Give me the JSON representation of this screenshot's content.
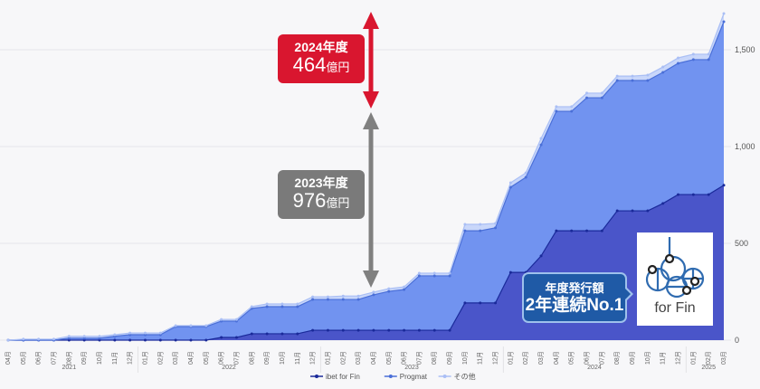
{
  "chart_data": {
    "type": "area",
    "stacked": true,
    "title": "",
    "xlabel": "",
    "ylabel": "",
    "ylim": [
      0,
      1700
    ],
    "y_ticks": [
      0,
      500,
      1000,
      1500
    ],
    "y_tick_labels": [
      "0",
      "500",
      "1,000",
      "1,500"
    ],
    "y_axis_position": "right",
    "grid": true,
    "legend_position": "bottom",
    "categories": [
      "04月",
      "05月",
      "06月",
      "07月",
      "08月",
      "09月",
      "10月",
      "11月",
      "12月",
      "01月",
      "02月",
      "03月",
      "04月",
      "05月",
      "06月",
      "07月",
      "08月",
      "09月",
      "10月",
      "11月",
      "12月",
      "01月",
      "02月",
      "03月",
      "04月",
      "05月",
      "06月",
      "07月",
      "08月",
      "09月",
      "10月",
      "11月",
      "12月",
      "01月",
      "02月",
      "03月",
      "04月",
      "05月",
      "06月",
      "07月",
      "08月",
      "09月",
      "10月",
      "11月",
      "12月",
      "01月",
      "02月",
      "03月"
    ],
    "year_labels": [
      {
        "label": "2021",
        "start_index": 0,
        "end_index": 8
      },
      {
        "label": "2022",
        "start_index": 9,
        "end_index": 20
      },
      {
        "label": "2023",
        "start_index": 21,
        "end_index": 32
      },
      {
        "label": "2024",
        "start_index": 33,
        "end_index": 44
      },
      {
        "label": "2025",
        "start_index": 45,
        "end_index": 47
      }
    ],
    "series": [
      {
        "name": "ibet for Fin",
        "color": "#4a55c9",
        "line_color": "#1a2a9a",
        "values": [
          0,
          0,
          0,
          0,
          0,
          0,
          0,
          0,
          0,
          0,
          0,
          0,
          0,
          0,
          14,
          14,
          33,
          33,
          33,
          33,
          51,
          51,
          51,
          51,
          51,
          51,
          51,
          51,
          51,
          51,
          192,
          192,
          192,
          350,
          350,
          435,
          565,
          565,
          565,
          565,
          668,
          668,
          668,
          706,
          752,
          752,
          752,
          800
        ]
      },
      {
        "name": "Progmat",
        "color": "#7193f0",
        "line_color": "#4a6fd8",
        "values": [
          0,
          0,
          0,
          0,
          10,
          10,
          10,
          20,
          28,
          28,
          28,
          70,
          70,
          70,
          84,
          84,
          131,
          140,
          140,
          140,
          159,
          159,
          159,
          159,
          183,
          201,
          210,
          281,
          281,
          281,
          373,
          373,
          388,
          440,
          491,
          574,
          617,
          617,
          687,
          687,
          673,
          673,
          673,
          677,
          678,
          697,
          697,
          845
        ]
      },
      {
        "name": "その他",
        "color": "#c9d7fa",
        "line_color": "#aabff5",
        "values": [
          0,
          5,
          5,
          5,
          10,
          10,
          10,
          8,
          9,
          9,
          9,
          5,
          5,
          5,
          9,
          9,
          9,
          14,
          14,
          14,
          14,
          14,
          18,
          18,
          14,
          14,
          14,
          14,
          14,
          14,
          33,
          33,
          23,
          23,
          23,
          33,
          24,
          24,
          24,
          24,
          23,
          23,
          28,
          28,
          28,
          28,
          28,
          42
        ]
      }
    ],
    "annotations": [
      {
        "label": "2024年度",
        "value_text": "464",
        "unit": "億円",
        "color": "#d9162f"
      },
      {
        "label": "2023年度",
        "value_text": "976",
        "unit": "億円",
        "color": "#777777"
      }
    ]
  },
  "callouts": {
    "fy2024": {
      "year": "2024年度",
      "amount": "464",
      "unit": "億円",
      "color": "#d9162f"
    },
    "fy2023": {
      "year": "2023年度",
      "amount": "976",
      "unit": "億円",
      "color": "#7a7a7a"
    }
  },
  "badge": {
    "line1": "年度発行額",
    "line2": "2年連続No.1"
  },
  "logo": {
    "text": "for Fin"
  },
  "legend": [
    {
      "label": "ibet for Fin",
      "color": "#1a2a9a"
    },
    {
      "label": "Progmat",
      "color": "#4a6fd8"
    },
    {
      "label": "その他",
      "color": "#aabff5"
    }
  ]
}
